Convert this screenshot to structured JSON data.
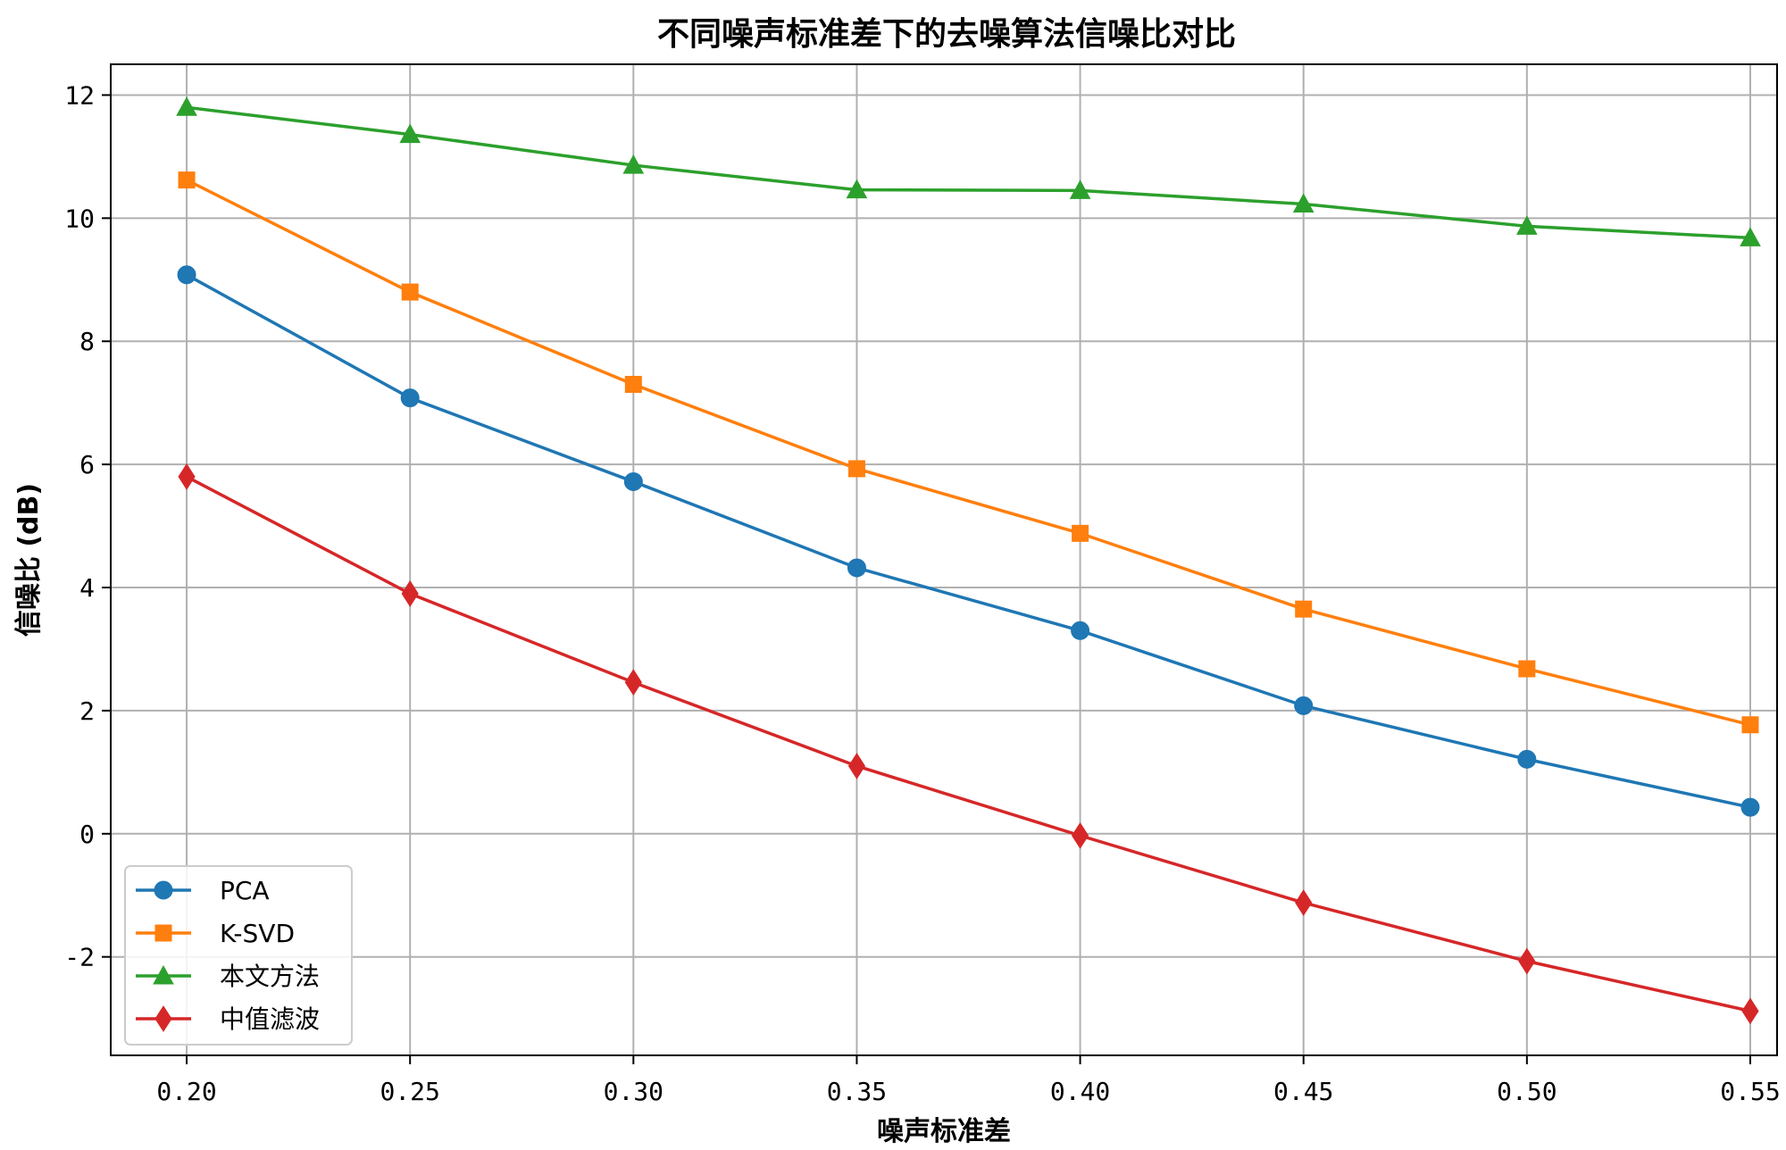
{
  "chart_data": {
    "type": "line",
    "title": "不同噪声标准差下的去噪算法信噪比对比",
    "xlabel": "噪声标准差",
    "ylabel": "信噪比 (dB)",
    "x": [
      0.2,
      0.25,
      0.3,
      0.35,
      0.4,
      0.45,
      0.5,
      0.55
    ],
    "x_tick_labels": [
      "0.20",
      "0.25",
      "0.30",
      "0.35",
      "0.40",
      "0.45",
      "0.50",
      "0.55"
    ],
    "xlim": [
      0.183,
      0.556
    ],
    "ylim": [
      -3.6,
      12.5
    ],
    "y_ticks": [
      -2,
      0,
      2,
      4,
      6,
      8,
      10,
      12
    ],
    "y_tick_labels": [
      "-2",
      "0",
      "2",
      "4",
      "6",
      "8",
      "10",
      "12"
    ],
    "grid": true,
    "legend_position": "lower-left",
    "series": [
      {
        "name": "PCA",
        "color": "#1f77b4",
        "marker": "circle",
        "values": [
          9.08,
          7.08,
          5.72,
          4.32,
          3.3,
          2.08,
          1.21,
          0.43
        ]
      },
      {
        "name": "K-SVD",
        "color": "#ff7f0e",
        "marker": "square",
        "values": [
          10.62,
          8.8,
          7.3,
          5.93,
          4.88,
          3.65,
          2.68,
          1.77
        ]
      },
      {
        "name": "本文方法",
        "color": "#2ca02c",
        "marker": "triangle",
        "values": [
          11.8,
          11.36,
          10.86,
          10.46,
          10.45,
          10.23,
          9.87,
          9.68
        ]
      },
      {
        "name": "中值滤波",
        "color": "#d62728",
        "marker": "diamond",
        "values": [
          5.8,
          3.9,
          2.46,
          1.1,
          -0.03,
          -1.12,
          -2.07,
          -2.88
        ]
      }
    ]
  }
}
